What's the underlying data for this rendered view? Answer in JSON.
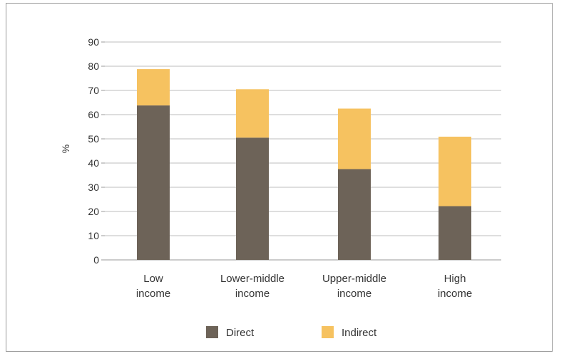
{
  "chart_data": {
    "type": "bar",
    "stacked": true,
    "categories": [
      [
        "Low",
        "income"
      ],
      [
        "Lower-middle",
        "income"
      ],
      [
        "Upper-middle",
        "income"
      ],
      [
        "High",
        "income"
      ]
    ],
    "series": [
      {
        "name": "Direct",
        "color": "#6d6358",
        "values": [
          63.8,
          50.5,
          37.5,
          22.2
        ]
      },
      {
        "name": "Indirect",
        "color": "#f6c260",
        "values": [
          15.0,
          20.0,
          25.0,
          28.7
        ]
      }
    ],
    "ylabel": "%",
    "xlabel": "",
    "title": "",
    "ylim": [
      0,
      90
    ],
    "yticks": [
      0,
      10,
      20,
      30,
      40,
      50,
      60,
      70,
      80,
      90
    ],
    "grid": true,
    "legend_position": "bottom-center"
  }
}
